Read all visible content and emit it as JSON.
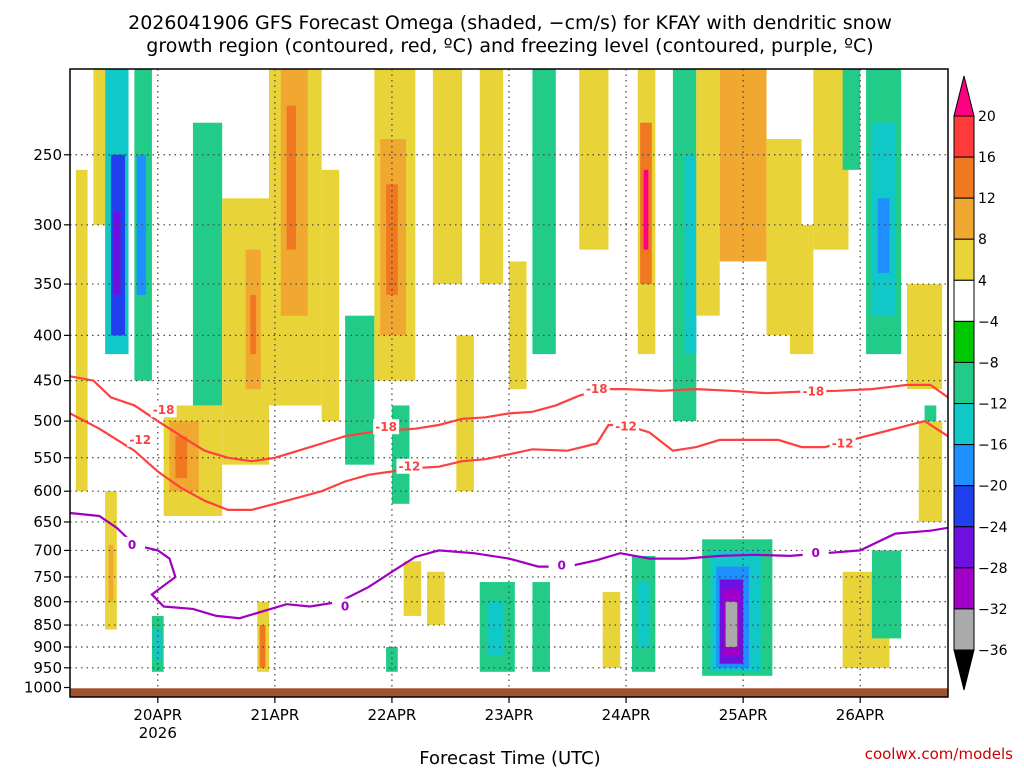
{
  "chart_data": {
    "type": "heatmap",
    "title_lines": [
      "2026041906 GFS Forecast Omega (shaded, −cm/s) for KFAY with dendritic snow",
      "growth region (contoured, red, ºC) and freezing level (contoured, purple, ºC)"
    ],
    "xlabel": "Forecast Time (UTC)",
    "ylabel": "",
    "y_axis": {
      "ticks": [
        250,
        300,
        350,
        400,
        450,
        500,
        550,
        600,
        650,
        700,
        750,
        800,
        850,
        900,
        950,
        1000
      ],
      "ylim": [
        1025,
        200
      ]
    },
    "x_axis": {
      "ticks": [
        {
          "label": "20APR",
          "day": 20,
          "sub": "2026"
        },
        {
          "label": "21APR",
          "day": 21,
          "sub": ""
        },
        {
          "label": "22APR",
          "day": 22,
          "sub": ""
        },
        {
          "label": "23APR",
          "day": 23,
          "sub": ""
        },
        {
          "label": "24APR",
          "day": 24,
          "sub": ""
        },
        {
          "label": "25APR",
          "day": 25,
          "sub": ""
        },
        {
          "label": "26APR",
          "day": 26,
          "sub": ""
        }
      ],
      "xlim": [
        19.25,
        26.75
      ]
    },
    "colorbar": {
      "labels": [
        "20",
        "16",
        "12",
        "8",
        "4",
        "−4",
        "−8",
        "−12",
        "−16",
        "−20",
        "−24",
        "−28",
        "−32",
        "−36"
      ],
      "colors": [
        "#ff0080",
        "#ff3a3a",
        "#f07820",
        "#f0a830",
        "#e8d438",
        "#ffffff",
        "#00c800",
        "#22cc88",
        "#10c8c8",
        "#1e90ff",
        "#2040f0",
        "#7010e0",
        "#a000c8",
        "#aaaaaa",
        "#000000"
      ]
    },
    "contours": [
      {
        "name": "-18",
        "color": "#ff4040",
        "points": [
          [
            19.25,
            445
          ],
          [
            19.45,
            450
          ],
          [
            19.6,
            470
          ],
          [
            19.8,
            480
          ],
          [
            20.0,
            500
          ],
          [
            20.2,
            520
          ],
          [
            20.4,
            540
          ],
          [
            20.6,
            550
          ],
          [
            20.8,
            555
          ],
          [
            21.0,
            550
          ],
          [
            21.2,
            540
          ],
          [
            21.4,
            530
          ],
          [
            21.6,
            520
          ],
          [
            21.8,
            515
          ],
          [
            22.0,
            512
          ],
          [
            22.2,
            510
          ],
          [
            22.4,
            505
          ],
          [
            22.6,
            497
          ],
          [
            22.8,
            495
          ],
          [
            23.0,
            490
          ],
          [
            23.2,
            488
          ],
          [
            23.4,
            480
          ],
          [
            23.6,
            468
          ],
          [
            23.8,
            460
          ],
          [
            24.0,
            460
          ],
          [
            24.3,
            462
          ],
          [
            24.6,
            460
          ],
          [
            24.9,
            462
          ],
          [
            25.2,
            465
          ],
          [
            25.5,
            463
          ],
          [
            25.8,
            462
          ],
          [
            26.1,
            460
          ],
          [
            26.4,
            455
          ],
          [
            26.6,
            455
          ],
          [
            26.75,
            470
          ]
        ],
        "labels": [
          {
            "x": 20.05,
            "p": 486
          },
          {
            "x": 21.95,
            "p": 508
          },
          {
            "x": 23.75,
            "p": 460
          },
          {
            "x": 25.6,
            "p": 463
          }
        ]
      },
      {
        "name": "-12",
        "color": "#ff4040",
        "points": [
          [
            19.25,
            490
          ],
          [
            19.5,
            510
          ],
          [
            19.8,
            540
          ],
          [
            20.0,
            570
          ],
          [
            20.2,
            595
          ],
          [
            20.4,
            615
          ],
          [
            20.6,
            630
          ],
          [
            20.8,
            630
          ],
          [
            21.0,
            620
          ],
          [
            21.2,
            610
          ],
          [
            21.4,
            600
          ],
          [
            21.6,
            585
          ],
          [
            21.8,
            575
          ],
          [
            22.0,
            570
          ],
          [
            22.2,
            565
          ],
          [
            22.4,
            563
          ],
          [
            22.6,
            555
          ],
          [
            22.8,
            552
          ],
          [
            23.0,
            545
          ],
          [
            23.2,
            538
          ],
          [
            23.5,
            540
          ],
          [
            23.75,
            530
          ],
          [
            23.85,
            505
          ],
          [
            24.0,
            505
          ],
          [
            24.2,
            515
          ],
          [
            24.4,
            540
          ],
          [
            24.6,
            535
          ],
          [
            24.8,
            525
          ],
          [
            25.0,
            525
          ],
          [
            25.3,
            525
          ],
          [
            25.5,
            535
          ],
          [
            25.7,
            535
          ],
          [
            26.0,
            522
          ],
          [
            26.3,
            510
          ],
          [
            26.55,
            500
          ],
          [
            26.75,
            520
          ]
        ],
        "labels": [
          {
            "x": 19.85,
            "p": 525
          },
          {
            "x": 22.15,
            "p": 563
          },
          {
            "x": 24.0,
            "p": 507
          },
          {
            "x": 25.85,
            "p": 530
          }
        ]
      },
      {
        "name": "0",
        "color": "#a000c0",
        "points": [
          [
            19.25,
            635
          ],
          [
            19.5,
            640
          ],
          [
            19.65,
            660
          ],
          [
            19.8,
            690
          ],
          [
            20.0,
            700
          ],
          [
            20.1,
            715
          ],
          [
            20.15,
            750
          ],
          [
            19.95,
            785
          ],
          [
            20.05,
            810
          ],
          [
            20.3,
            815
          ],
          [
            20.5,
            830
          ],
          [
            20.7,
            835
          ],
          [
            20.9,
            820
          ],
          [
            21.1,
            805
          ],
          [
            21.3,
            810
          ],
          [
            21.55,
            800
          ],
          [
            21.8,
            770
          ],
          [
            22.0,
            740
          ],
          [
            22.2,
            712
          ],
          [
            22.4,
            700
          ],
          [
            22.7,
            705
          ],
          [
            23.0,
            715
          ],
          [
            23.25,
            730
          ],
          [
            23.5,
            730
          ],
          [
            23.75,
            718
          ],
          [
            23.95,
            705
          ],
          [
            24.2,
            715
          ],
          [
            24.5,
            715
          ],
          [
            24.8,
            710
          ],
          [
            25.1,
            708
          ],
          [
            25.4,
            710
          ],
          [
            25.7,
            705
          ],
          [
            26.0,
            700
          ],
          [
            26.3,
            670
          ],
          [
            26.6,
            665
          ],
          [
            26.75,
            660
          ]
        ],
        "labels": [
          {
            "x": 19.78,
            "p": 690
          },
          {
            "x": 21.6,
            "p": 810
          },
          {
            "x": 23.45,
            "p": 728
          },
          {
            "x": 25.62,
            "p": 705
          }
        ]
      }
    ],
    "cells": [
      {
        "x0": 19.3,
        "x1": 19.4,
        "p0": 260,
        "p1": 600,
        "v": 6
      },
      {
        "x0": 19.45,
        "x1": 19.55,
        "p0": 200,
        "p1": 300,
        "v": 6
      },
      {
        "x0": 19.55,
        "x1": 19.75,
        "p0": 200,
        "p1": 420,
        "v": -12
      },
      {
        "x0": 19.6,
        "x1": 19.72,
        "p0": 250,
        "p1": 400,
        "v": -20
      },
      {
        "x0": 19.62,
        "x1": 19.68,
        "p0": 290,
        "p1": 360,
        "v": -26
      },
      {
        "x0": 19.8,
        "x1": 19.95,
        "p0": 200,
        "p1": 450,
        "v": -10
      },
      {
        "x0": 19.82,
        "x1": 19.9,
        "p0": 250,
        "p1": 360,
        "v": -16
      },
      {
        "x0": 19.55,
        "x1": 19.65,
        "p0": 600,
        "p1": 860,
        "v": 6
      },
      {
        "x0": 19.58,
        "x1": 19.62,
        "p0": 690,
        "p1": 800,
        "v": 10
      },
      {
        "x0": 19.95,
        "x1": 20.05,
        "p0": 830,
        "p1": 960,
        "v": -8
      },
      {
        "x0": 19.97,
        "x1": 20.03,
        "p0": 860,
        "p1": 930,
        "v": -14
      },
      {
        "x0": 20.05,
        "x1": 20.55,
        "p0": 480,
        "p1": 640,
        "v": 6
      },
      {
        "x0": 20.1,
        "x1": 20.35,
        "p0": 500,
        "p1": 600,
        "v": 10
      },
      {
        "x0": 20.15,
        "x1": 20.25,
        "p0": 520,
        "p1": 580,
        "v": 13
      },
      {
        "x0": 20.3,
        "x1": 20.55,
        "p0": 230,
        "p1": 480,
        "v": -8
      },
      {
        "x0": 20.55,
        "x1": 20.95,
        "p0": 280,
        "p1": 560,
        "v": 6
      },
      {
        "x0": 20.75,
        "x1": 20.88,
        "p0": 320,
        "p1": 460,
        "v": 10
      },
      {
        "x0": 20.79,
        "x1": 20.84,
        "p0": 360,
        "p1": 420,
        "v": 14
      },
      {
        "x0": 20.85,
        "x1": 20.95,
        "p0": 800,
        "p1": 960,
        "v": 6
      },
      {
        "x0": 20.87,
        "x1": 20.92,
        "p0": 850,
        "p1": 950,
        "v": 12
      },
      {
        "x0": 20.95,
        "x1": 21.4,
        "p0": 200,
        "p1": 480,
        "v": 5
      },
      {
        "x0": 21.05,
        "x1": 21.28,
        "p0": 200,
        "p1": 380,
        "v": 10
      },
      {
        "x0": 21.1,
        "x1": 21.18,
        "p0": 220,
        "p1": 320,
        "v": 13
      },
      {
        "x0": 21.4,
        "x1": 21.55,
        "p0": 260,
        "p1": 500,
        "v": 6
      },
      {
        "x0": 21.6,
        "x1": 21.85,
        "p0": 380,
        "p1": 560,
        "v": -8
      },
      {
        "x0": 21.65,
        "x1": 21.75,
        "p0": 420,
        "p1": 520,
        "v": -10
      },
      {
        "x0": 21.85,
        "x1": 22.2,
        "p0": 200,
        "p1": 450,
        "v": 6
      },
      {
        "x0": 21.9,
        "x1": 22.12,
        "p0": 240,
        "p1": 400,
        "v": 10
      },
      {
        "x0": 21.95,
        "x1": 22.05,
        "p0": 270,
        "p1": 360,
        "v": 13
      },
      {
        "x0": 22.0,
        "x1": 22.15,
        "p0": 480,
        "p1": 620,
        "v": -8
      },
      {
        "x0": 22.35,
        "x1": 22.6,
        "p0": 200,
        "p1": 350,
        "v": 5
      },
      {
        "x0": 22.55,
        "x1": 22.7,
        "p0": 400,
        "p1": 600,
        "v": 5
      },
      {
        "x0": 22.75,
        "x1": 22.95,
        "p0": 200,
        "p1": 350,
        "v": 6
      },
      {
        "x0": 22.75,
        "x1": 23.05,
        "p0": 760,
        "p1": 960,
        "v": -8
      },
      {
        "x0": 22.82,
        "x1": 22.95,
        "p0": 800,
        "p1": 920,
        "v": -12
      },
      {
        "x0": 23.0,
        "x1": 23.15,
        "p0": 330,
        "p1": 460,
        "v": 6
      },
      {
        "x0": 23.2,
        "x1": 23.4,
        "p0": 200,
        "p1": 420,
        "v": -8
      },
      {
        "x0": 23.2,
        "x1": 23.35,
        "p0": 760,
        "p1": 960,
        "v": -8
      },
      {
        "x0": 23.6,
        "x1": 23.85,
        "p0": 200,
        "p1": 320,
        "v": 6
      },
      {
        "x0": 23.8,
        "x1": 23.95,
        "p0": 780,
        "p1": 950,
        "v": 6
      },
      {
        "x0": 24.1,
        "x1": 24.25,
        "p0": 200,
        "p1": 420,
        "v": 6
      },
      {
        "x0": 24.12,
        "x1": 24.22,
        "p0": 230,
        "p1": 350,
        "v": 12
      },
      {
        "x0": 24.15,
        "x1": 24.19,
        "p0": 260,
        "p1": 320,
        "v": 20
      },
      {
        "x0": 24.4,
        "x1": 24.6,
        "p0": 200,
        "p1": 500,
        "v": -8
      },
      {
        "x0": 24.5,
        "x1": 24.6,
        "p0": 250,
        "p1": 420,
        "v": -12
      },
      {
        "x0": 24.6,
        "x1": 24.8,
        "p0": 200,
        "p1": 380,
        "v": 6
      },
      {
        "x0": 24.05,
        "x1": 24.25,
        "p0": 710,
        "p1": 960,
        "v": -8
      },
      {
        "x0": 24.1,
        "x1": 24.2,
        "p0": 760,
        "p1": 900,
        "v": -12
      },
      {
        "x0": 24.65,
        "x1": 25.25,
        "p0": 680,
        "p1": 970,
        "v": -8
      },
      {
        "x0": 24.72,
        "x1": 25.15,
        "p0": 700,
        "p1": 960,
        "v": -14
      },
      {
        "x0": 24.77,
        "x1": 25.05,
        "p0": 730,
        "p1": 950,
        "v": -18
      },
      {
        "x0": 24.8,
        "x1": 25.0,
        "p0": 755,
        "p1": 940,
        "v": -26
      },
      {
        "x0": 24.83,
        "x1": 24.97,
        "p0": 775,
        "p1": 920,
        "v": -30
      },
      {
        "x0": 24.85,
        "x1": 24.95,
        "p0": 800,
        "p1": 900,
        "v": -34
      },
      {
        "x0": 24.8,
        "x1": 25.2,
        "p0": 200,
        "p1": 330,
        "v": 8
      },
      {
        "x0": 24.9,
        "x1": 25.05,
        "p0": 220,
        "p1": 300,
        "v": 10
      },
      {
        "x0": 25.2,
        "x1": 25.5,
        "p0": 240,
        "p1": 400,
        "v": 5
      },
      {
        "x0": 25.4,
        "x1": 25.6,
        "p0": 300,
        "p1": 420,
        "v": 5
      },
      {
        "x0": 25.6,
        "x1": 25.9,
        "p0": 200,
        "p1": 320,
        "v": 5
      },
      {
        "x0": 25.85,
        "x1": 26.0,
        "p0": 200,
        "p1": 260,
        "v": -8
      },
      {
        "x0": 26.05,
        "x1": 26.35,
        "p0": 200,
        "p1": 420,
        "v": -8
      },
      {
        "x0": 26.1,
        "x1": 26.3,
        "p0": 230,
        "p1": 380,
        "v": -12
      },
      {
        "x0": 26.15,
        "x1": 26.25,
        "p0": 280,
        "p1": 340,
        "v": -18
      },
      {
        "x0": 26.4,
        "x1": 26.7,
        "p0": 350,
        "p1": 460,
        "v": 5
      },
      {
        "x0": 26.55,
        "x1": 26.65,
        "p0": 480,
        "p1": 640,
        "v": -8
      },
      {
        "x0": 25.85,
        "x1": 26.25,
        "p0": 740,
        "p1": 950,
        "v": 5
      },
      {
        "x0": 26.1,
        "x1": 26.35,
        "p0": 700,
        "p1": 880,
        "v": -8
      },
      {
        "x0": 26.5,
        "x1": 26.7,
        "p0": 500,
        "p1": 650,
        "v": 5
      },
      {
        "x0": 22.1,
        "x1": 22.25,
        "p0": 720,
        "p1": 830,
        "v": 5
      },
      {
        "x0": 22.3,
        "x1": 22.45,
        "p0": 740,
        "p1": 850,
        "v": 5
      },
      {
        "x0": 21.95,
        "x1": 22.05,
        "p0": 900,
        "p1": 960,
        "v": -8
      }
    ],
    "ground_color": "#a0522d"
  },
  "credit": "coolwx.com/models"
}
